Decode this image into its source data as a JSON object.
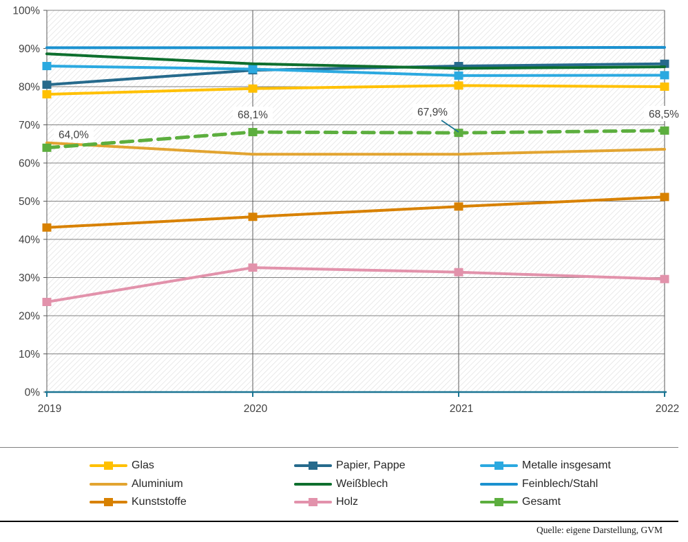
{
  "chart_data": {
    "type": "line",
    "title": "",
    "xlabel": "",
    "ylabel": "",
    "x_labels": [
      "2019",
      "2020",
      "2021",
      "2022"
    ],
    "y_ticks": [
      "0%",
      "10%",
      "20%",
      "30%",
      "40%",
      "50%",
      "60%",
      "70%",
      "80%",
      "90%",
      "100%"
    ],
    "ylim": [
      0,
      100
    ],
    "grid": true,
    "legend_position": "bottom",
    "series": [
      {
        "name": "Glas",
        "color": "#FFC000",
        "marker": true,
        "dashed": false,
        "values": [
          78.0,
          79.5,
          80.3,
          80.0
        ]
      },
      {
        "name": "Papier, Pappe",
        "color": "#266A8C",
        "marker": true,
        "dashed": false,
        "values": [
          80.5,
          84.3,
          85.4,
          86.0
        ]
      },
      {
        "name": "Metalle insgesamt",
        "color": "#2BA9E0",
        "marker": true,
        "dashed": false,
        "values": [
          85.4,
          84.6,
          82.9,
          83.0
        ]
      },
      {
        "name": "Aluminium",
        "color": "#E2A431",
        "marker": false,
        "dashed": false,
        "values": [
          65.3,
          62.3,
          62.3,
          63.6
        ]
      },
      {
        "name": "Weißblech",
        "color": "#0E6F2E",
        "marker": false,
        "dashed": false,
        "values": [
          88.6,
          86.0,
          84.8,
          85.2
        ]
      },
      {
        "name": "Feinblech/Stahl",
        "color": "#1B91CF",
        "marker": false,
        "dashed": false,
        "values": [
          90.2,
          90.2,
          90.2,
          90.3
        ]
      },
      {
        "name": "Kunststoffe",
        "color": "#D88100",
        "marker": true,
        "dashed": false,
        "values": [
          43.1,
          45.9,
          48.6,
          51.1
        ]
      },
      {
        "name": "Holz",
        "color": "#E292AB",
        "marker": true,
        "dashed": false,
        "values": [
          23.6,
          32.6,
          31.4,
          29.6
        ]
      },
      {
        "name": "Gesamt",
        "color": "#5CAE3E",
        "marker": true,
        "dashed": true,
        "values": [
          64.0,
          68.1,
          67.9,
          68.5
        ]
      }
    ],
    "annotations": [
      {
        "text": "64,0%",
        "cx": 107,
        "cy": 195
      },
      {
        "text": "68,1%",
        "cx": 367,
        "cy": 166
      },
      {
        "text": "67,9%",
        "cx": 628,
        "cy": 162,
        "leader": [
          641,
          175,
          666,
          192
        ]
      },
      {
        "text": "68,5%",
        "cx": 964,
        "cy": 165
      }
    ],
    "colors": {
      "x_axis": "#1A7492",
      "gridline_h": "#808080",
      "gridline_v": "#595959",
      "hatch": "#DEDEDE",
      "tick_text": "#404040",
      "annotation_text": "#404040",
      "leader_line": "#1A7492"
    }
  },
  "legend": {
    "columns": [
      [
        "Glas",
        "Aluminium",
        "Kunststoffe"
      ],
      [
        "Papier, Pappe",
        "Weißblech",
        "Holz"
      ],
      [
        "Metalle insgesamt",
        "Feinblech/Stahl",
        "Gesamt"
      ]
    ],
    "series_index_by_column": [
      [
        0,
        3,
        6
      ],
      [
        1,
        4,
        7
      ],
      [
        2,
        5,
        8
      ]
    ]
  },
  "source_note": "Quelle: eigene Darstellung, GVM"
}
